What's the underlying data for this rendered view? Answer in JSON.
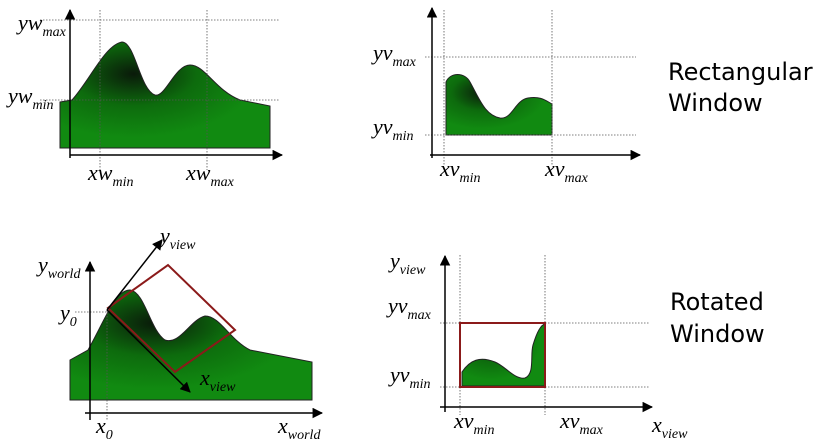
{
  "rectangular": {
    "world": {
      "yw_max": {
        "main": "yw",
        "sub": "max"
      },
      "yw_min": {
        "main": "yw",
        "sub": "min"
      },
      "xw_min": {
        "main": "xw",
        "sub": "min"
      },
      "xw_max": {
        "main": "xw",
        "sub": "max"
      }
    },
    "viewport": {
      "yv_max": {
        "main": "yv",
        "sub": "max"
      },
      "yv_min": {
        "main": "yv",
        "sub": "min"
      },
      "xv_min": {
        "main": "xv",
        "sub": "min"
      },
      "xv_max": {
        "main": "xv",
        "sub": "max"
      }
    },
    "caption": [
      "Rectangular",
      "Window"
    ]
  },
  "rotated": {
    "world": {
      "y_world": {
        "main": "y",
        "sub": "world"
      },
      "y_view": {
        "main": "y",
        "sub": "view"
      },
      "y_0": {
        "main": "y",
        "sub": "0"
      },
      "x_view": {
        "main": "x",
        "sub": "view"
      },
      "x_0": {
        "main": "x",
        "sub": "0"
      },
      "x_world": {
        "main": "x",
        "sub": "world"
      }
    },
    "viewport": {
      "y_view": {
        "main": "y",
        "sub": "view"
      },
      "yv_max": {
        "main": "yv",
        "sub": "max"
      },
      "yv_min": {
        "main": "yv",
        "sub": "min"
      },
      "xv_min": {
        "main": "xv",
        "sub": "min"
      },
      "xv_max": {
        "main": "xv",
        "sub": "max"
      },
      "x_view": {
        "main": "x",
        "sub": "view"
      }
    },
    "caption": [
      "Rotated",
      "Window"
    ]
  }
}
